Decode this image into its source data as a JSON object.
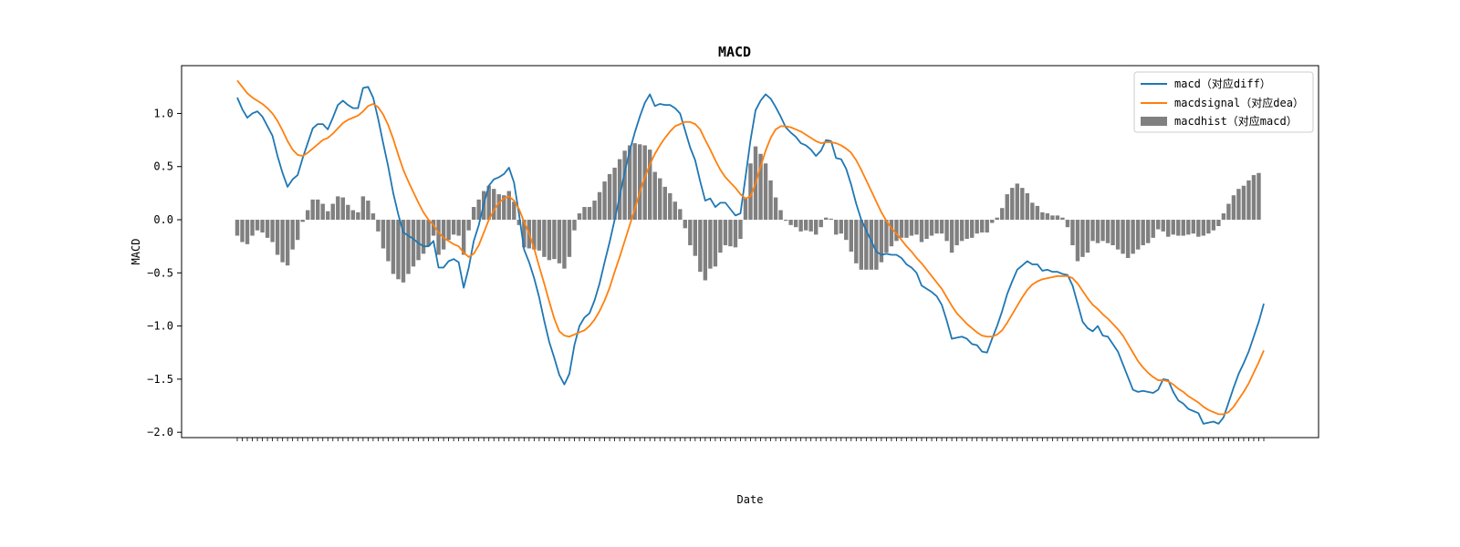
{
  "chart_data": {
    "type": "line",
    "title": "MACD",
    "xlabel": "Date",
    "ylabel": "MACD",
    "ylim": [
      -2.05,
      1.45
    ],
    "yticks": [
      -2.0,
      -1.5,
      -1.0,
      -0.5,
      0.0,
      0.5,
      1.0
    ],
    "ytick_labels": [
      "−2.0",
      "−1.5",
      "−1.0",
      "−0.5",
      "0.0",
      "0.5",
      "1.0"
    ],
    "legend_position": "upper right",
    "series": [
      {
        "name": "macd（对应diff）",
        "type": "line",
        "color": "#1f77b4",
        "values": [
          1.15,
          1.04,
          0.96,
          1.0,
          1.02,
          0.97,
          0.88,
          0.79,
          0.6,
          0.44,
          0.31,
          0.38,
          0.42,
          0.58,
          0.72,
          0.86,
          0.9,
          0.9,
          0.85,
          0.96,
          1.08,
          1.12,
          1.08,
          1.05,
          1.05,
          1.24,
          1.25,
          1.15,
          0.95,
          0.72,
          0.5,
          0.25,
          0.05,
          -0.12,
          -0.15,
          -0.18,
          -0.22,
          -0.25,
          -0.25,
          -0.2,
          -0.45,
          -0.45,
          -0.39,
          -0.37,
          -0.4,
          -0.64,
          -0.45,
          -0.2,
          -0.05,
          0.15,
          0.32,
          0.38,
          0.4,
          0.43,
          0.49,
          0.35,
          0.05,
          -0.28,
          -0.4,
          -0.55,
          -0.73,
          -0.95,
          -1.15,
          -1.3,
          -1.46,
          -1.55,
          -1.45,
          -1.18,
          -1.0,
          -0.92,
          -0.88,
          -0.76,
          -0.6,
          -0.4,
          -0.21,
          0.0,
          0.22,
          0.45,
          0.65,
          0.82,
          0.97,
          1.1,
          1.18,
          1.07,
          1.09,
          1.08,
          1.08,
          1.05,
          1.0,
          0.84,
          0.68,
          0.56,
          0.36,
          0.18,
          0.2,
          0.12,
          0.16,
          0.16,
          0.1,
          0.04,
          0.06,
          0.4,
          0.75,
          1.03,
          1.12,
          1.18,
          1.14,
          1.06,
          0.97,
          0.87,
          0.82,
          0.78,
          0.72,
          0.7,
          0.66,
          0.6,
          0.65,
          0.75,
          0.74,
          0.58,
          0.57,
          0.48,
          0.33,
          0.15,
          0.0,
          -0.1,
          -0.2,
          -0.3,
          -0.33,
          -0.32,
          -0.33,
          -0.33,
          -0.36,
          -0.42,
          -0.45,
          -0.5,
          -0.62,
          -0.65,
          -0.68,
          -0.72,
          -0.8,
          -0.95,
          -1.12,
          -1.11,
          -1.1,
          -1.12,
          -1.17,
          -1.18,
          -1.24,
          -1.25,
          -1.12,
          -1.0,
          -0.86,
          -0.7,
          -0.58,
          -0.47,
          -0.43,
          -0.39,
          -0.42,
          -0.42,
          -0.48,
          -0.47,
          -0.49,
          -0.49,
          -0.51,
          -0.52,
          -0.62,
          -0.79,
          -0.96,
          -1.02,
          -1.05,
          -1.0,
          -1.09,
          -1.1,
          -1.17,
          -1.24,
          -1.36,
          -1.48,
          -1.6,
          -1.62,
          -1.61,
          -1.62,
          -1.63,
          -1.6,
          -1.5,
          -1.51,
          -1.62,
          -1.7,
          -1.73,
          -1.78,
          -1.8,
          -1.82,
          -1.92,
          -1.91,
          -1.9,
          -1.92,
          -1.86,
          -1.72,
          -1.58,
          -1.45,
          -1.35,
          -1.24,
          -1.1,
          -0.96,
          -0.79
        ]
      },
      {
        "name": "macdsignal（对应dea）",
        "type": "line",
        "color": "#ff7f0e",
        "values": [
          1.31,
          1.25,
          1.19,
          1.15,
          1.12,
          1.09,
          1.05,
          1.0,
          0.93,
          0.84,
          0.74,
          0.66,
          0.61,
          0.6,
          0.63,
          0.67,
          0.71,
          0.75,
          0.77,
          0.81,
          0.86,
          0.91,
          0.94,
          0.96,
          0.98,
          1.02,
          1.07,
          1.09,
          1.06,
          0.99,
          0.89,
          0.76,
          0.61,
          0.47,
          0.36,
          0.26,
          0.16,
          0.07,
          0.0,
          -0.05,
          -0.12,
          -0.17,
          -0.2,
          -0.23,
          -0.25,
          -0.31,
          -0.35,
          -0.32,
          -0.24,
          -0.12,
          0.0,
          0.09,
          0.16,
          0.2,
          0.22,
          0.18,
          0.1,
          -0.02,
          -0.13,
          -0.27,
          -0.44,
          -0.6,
          -0.77,
          -0.93,
          -1.05,
          -1.09,
          -1.1,
          -1.08,
          -1.06,
          -1.04,
          -1.0,
          -0.94,
          -0.86,
          -0.76,
          -0.64,
          -0.49,
          -0.35,
          -0.2,
          -0.05,
          0.1,
          0.26,
          0.4,
          0.52,
          0.62,
          0.7,
          0.77,
          0.83,
          0.88,
          0.9,
          0.92,
          0.92,
          0.9,
          0.85,
          0.75,
          0.66,
          0.56,
          0.47,
          0.4,
          0.35,
          0.3,
          0.24,
          0.2,
          0.22,
          0.34,
          0.5,
          0.65,
          0.77,
          0.85,
          0.88,
          0.88,
          0.87,
          0.85,
          0.83,
          0.8,
          0.77,
          0.74,
          0.72,
          0.73,
          0.73,
          0.72,
          0.7,
          0.67,
          0.63,
          0.56,
          0.47,
          0.37,
          0.27,
          0.17,
          0.07,
          -0.01,
          -0.08,
          -0.13,
          -0.19,
          -0.25,
          -0.3,
          -0.36,
          -0.41,
          -0.47,
          -0.53,
          -0.59,
          -0.65,
          -0.73,
          -0.81,
          -0.88,
          -0.93,
          -0.98,
          -1.02,
          -1.06,
          -1.09,
          -1.1,
          -1.1,
          -1.08,
          -1.04,
          -0.97,
          -0.89,
          -0.81,
          -0.73,
          -0.66,
          -0.61,
          -0.58,
          -0.56,
          -0.55,
          -0.54,
          -0.53,
          -0.53,
          -0.53,
          -0.55,
          -0.6,
          -0.67,
          -0.74,
          -0.8,
          -0.84,
          -0.89,
          -0.93,
          -0.98,
          -1.03,
          -1.09,
          -1.17,
          -1.25,
          -1.33,
          -1.39,
          -1.44,
          -1.48,
          -1.51,
          -1.51,
          -1.52,
          -1.55,
          -1.59,
          -1.62,
          -1.66,
          -1.69,
          -1.72,
          -1.76,
          -1.79,
          -1.81,
          -1.83,
          -1.83,
          -1.81,
          -1.76,
          -1.69,
          -1.62,
          -1.54,
          -1.44,
          -1.34,
          -1.23
        ]
      },
      {
        "name": "macdhist（对应macd）",
        "type": "bar",
        "color": "#808080",
        "values": [
          -0.15,
          -0.21,
          -0.23,
          -0.15,
          -0.1,
          -0.12,
          -0.17,
          -0.21,
          -0.33,
          -0.4,
          -0.43,
          -0.28,
          -0.19,
          -0.02,
          0.09,
          0.19,
          0.19,
          0.15,
          0.08,
          0.15,
          0.22,
          0.21,
          0.14,
          0.09,
          0.07,
          0.22,
          0.18,
          0.06,
          -0.11,
          -0.27,
          -0.39,
          -0.51,
          -0.56,
          -0.59,
          -0.51,
          -0.44,
          -0.38,
          -0.32,
          -0.25,
          -0.15,
          -0.33,
          -0.28,
          -0.19,
          -0.14,
          -0.15,
          -0.33,
          -0.1,
          0.12,
          0.19,
          0.27,
          0.32,
          0.29,
          0.24,
          0.23,
          0.27,
          0.17,
          -0.05,
          -0.26,
          -0.27,
          -0.28,
          -0.29,
          -0.35,
          -0.38,
          -0.37,
          -0.41,
          -0.46,
          -0.35,
          -0.1,
          0.06,
          0.12,
          0.12,
          0.18,
          0.26,
          0.36,
          0.43,
          0.49,
          0.57,
          0.65,
          0.7,
          0.72,
          0.71,
          0.7,
          0.66,
          0.45,
          0.39,
          0.31,
          0.25,
          0.17,
          0.1,
          -0.08,
          -0.24,
          -0.34,
          -0.49,
          -0.57,
          -0.46,
          -0.44,
          -0.31,
          -0.24,
          -0.25,
          -0.26,
          -0.18,
          0.2,
          0.53,
          0.69,
          0.62,
          0.53,
          0.37,
          0.21,
          0.09,
          -0.01,
          -0.05,
          -0.07,
          -0.11,
          -0.1,
          -0.11,
          -0.14,
          -0.07,
          0.02,
          0.01,
          -0.14,
          -0.13,
          -0.19,
          -0.3,
          -0.41,
          -0.47,
          -0.47,
          -0.47,
          -0.47,
          -0.4,
          -0.31,
          -0.25,
          -0.2,
          -0.17,
          -0.17,
          -0.15,
          -0.14,
          -0.21,
          -0.18,
          -0.15,
          -0.13,
          -0.13,
          -0.2,
          -0.31,
          -0.24,
          -0.2,
          -0.18,
          -0.17,
          -0.13,
          -0.12,
          -0.12,
          -0.03,
          0.02,
          0.11,
          0.24,
          0.3,
          0.34,
          0.3,
          0.25,
          0.16,
          0.13,
          0.07,
          0.06,
          0.04,
          0.04,
          0.02,
          -0.07,
          -0.24,
          -0.39,
          -0.35,
          -0.31,
          -0.2,
          -0.22,
          -0.2,
          -0.22,
          -0.24,
          -0.28,
          -0.32,
          -0.36,
          -0.32,
          -0.28,
          -0.24,
          -0.22,
          -0.17,
          -0.09,
          -0.11,
          -0.16,
          -0.14,
          -0.15,
          -0.15,
          -0.14,
          -0.13,
          -0.16,
          -0.15,
          -0.13,
          -0.1,
          -0.06,
          0.06,
          0.15,
          0.23,
          0.29,
          0.32,
          0.37,
          0.42,
          0.44
        ]
      }
    ]
  }
}
